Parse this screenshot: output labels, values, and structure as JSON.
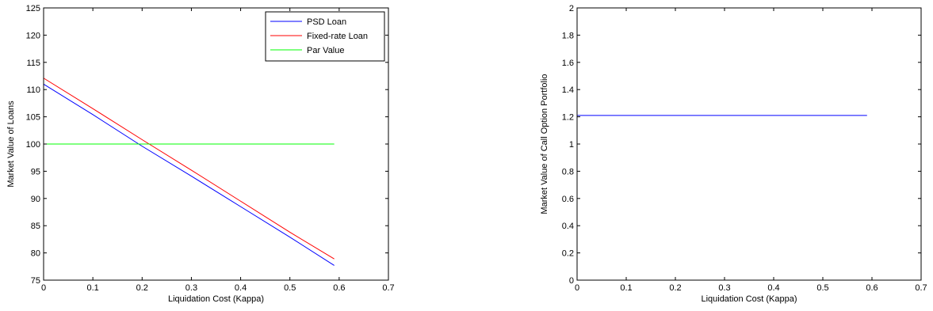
{
  "chart_data": [
    {
      "type": "line",
      "xlabel": "Liquidation Cost (Kappa)",
      "ylabel": "Market Value of Loans",
      "xlim": [
        0,
        0.7
      ],
      "ylim": [
        75,
        125
      ],
      "xticks": [
        "0",
        "0.1",
        "0.2",
        "0.3",
        "0.4",
        "0.5",
        "0.6",
        "0.7"
      ],
      "yticks": [
        "75",
        "80",
        "85",
        "90",
        "95",
        "100",
        "105",
        "110",
        "115",
        "120",
        "125"
      ],
      "grid": false,
      "legend_position": "top-right",
      "series": [
        {
          "name": "PSD Loan",
          "color": "#0000ff",
          "x": [
            0,
            0.1,
            0.2,
            0.3,
            0.4,
            0.5,
            0.59
          ],
          "y": [
            111,
            105.4,
            99.6,
            94.1,
            88.5,
            82.9,
            77.7
          ]
        },
        {
          "name": "Fixed-rate Loan",
          "color": "#ff0000",
          "x": [
            0,
            0.1,
            0.2,
            0.3,
            0.4,
            0.5,
            0.59
          ],
          "y": [
            112.1,
            106.5,
            100.8,
            95.2,
            89.5,
            83.8,
            78.9
          ]
        },
        {
          "name": "Par Value",
          "color": "#00ff00",
          "x": [
            0,
            0.59
          ],
          "y": [
            100,
            100
          ]
        }
      ]
    },
    {
      "type": "line",
      "xlabel": "Liquidation Cost (Kappa)",
      "ylabel": "Market Value of Call Option Portfolio",
      "xlim": [
        0,
        0.7
      ],
      "ylim": [
        0,
        2
      ],
      "xticks": [
        "0",
        "0.1",
        "0.2",
        "0.3",
        "0.4",
        "0.5",
        "0.6",
        "0.7"
      ],
      "yticks": [
        "0",
        "0.2",
        "0.4",
        "0.6",
        "0.8",
        "1",
        "1.2",
        "1.4",
        "1.6",
        "1.8",
        "2"
      ],
      "grid": false,
      "series": [
        {
          "color": "#0000ff",
          "x": [
            0,
            0.59
          ],
          "y": [
            1.21,
            1.21
          ]
        }
      ]
    }
  ]
}
